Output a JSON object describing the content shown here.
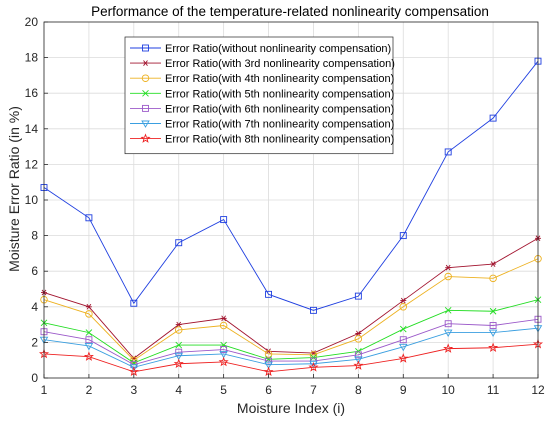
{
  "chart_data": {
    "type": "line",
    "title": "Performance of the temperature-related nonlinearity compensation",
    "xlabel": "Moisture Index (i)",
    "ylabel": "Moisture Error Ratio (in %)",
    "x": [
      1,
      2,
      3,
      4,
      5,
      6,
      7,
      8,
      9,
      10,
      11,
      12
    ],
    "xlim": [
      1,
      12
    ],
    "ylim": [
      0,
      20
    ],
    "xticks": [
      "1",
      "2",
      "3",
      "4",
      "5",
      "6",
      "7",
      "8",
      "9",
      "10",
      "11",
      "12"
    ],
    "yticks": [
      "0",
      "2",
      "4",
      "6",
      "8",
      "10",
      "12",
      "14",
      "16",
      "18",
      "20"
    ],
    "grid": true,
    "legend_position": "top-center",
    "series": [
      {
        "name": "Error Ratio(without nonlinearity compensation)",
        "color": "#1f3fe0",
        "marker": "square",
        "values": [
          10.7,
          9.0,
          4.2,
          7.6,
          8.9,
          4.7,
          3.8,
          4.6,
          8.0,
          12.7,
          14.6,
          17.8
        ]
      },
      {
        "name": "Error Ratio(with 3rd nonlinearity compensation)",
        "color": "#a2142f",
        "marker": "asterisk",
        "values": [
          4.8,
          4.0,
          1.1,
          3.0,
          3.35,
          1.5,
          1.4,
          2.5,
          4.35,
          6.2,
          6.4,
          7.85
        ]
      },
      {
        "name": "Error Ratio(with 4th nonlinearity compensation)",
        "color": "#edb120",
        "marker": "circle",
        "values": [
          4.4,
          3.6,
          1.0,
          2.7,
          2.95,
          1.35,
          1.3,
          2.2,
          4.0,
          5.7,
          5.6,
          6.7
        ]
      },
      {
        "name": "Error Ratio(with 5th nonlinearity compensation)",
        "color": "#22dd22",
        "marker": "cross",
        "values": [
          3.1,
          2.55,
          0.85,
          1.85,
          1.85,
          1.05,
          1.15,
          1.5,
          2.75,
          3.8,
          3.75,
          4.4
        ]
      },
      {
        "name": "Error Ratio(with 6th nonlinearity compensation)",
        "color": "#9b59c9",
        "marker": "square",
        "values": [
          2.6,
          2.15,
          0.75,
          1.45,
          1.6,
          0.95,
          0.95,
          1.3,
          2.15,
          3.05,
          2.95,
          3.3
        ]
      },
      {
        "name": "Error Ratio(with 7th nonlinearity compensation)",
        "color": "#3a9fe0",
        "marker": "triangle-down",
        "values": [
          2.15,
          1.8,
          0.6,
          1.25,
          1.35,
          0.75,
          0.8,
          1.05,
          1.75,
          2.55,
          2.55,
          2.8
        ]
      },
      {
        "name": "Error Ratio(with 8th nonlinearity compensation)",
        "color": "#ee2222",
        "marker": "star",
        "values": [
          1.35,
          1.2,
          0.35,
          0.8,
          0.9,
          0.35,
          0.6,
          0.7,
          1.1,
          1.65,
          1.7,
          1.9
        ]
      }
    ]
  }
}
